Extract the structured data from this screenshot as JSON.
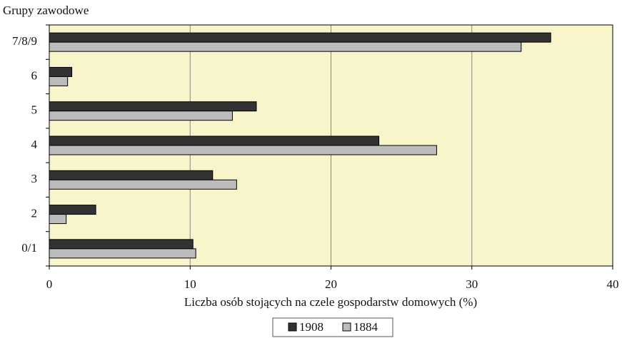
{
  "chart_data": {
    "type": "hbar",
    "title": "Grupy zawodowe",
    "xlabel": "Liczba osób stojących na czele gospodarstw domowych (%)",
    "categories": [
      "7/8/9",
      "6",
      "5",
      "4",
      "3",
      "2",
      "0/1"
    ],
    "series": [
      {
        "name": "1908",
        "color": "#333333",
        "values": [
          35.6,
          1.6,
          14.7,
          23.4,
          11.6,
          3.3,
          10.2
        ]
      },
      {
        "name": "1884",
        "color": "#bcbcbc",
        "values": [
          33.5,
          1.3,
          13.0,
          27.5,
          13.3,
          1.2,
          10.4
        ]
      }
    ],
    "xlim": [
      0,
      40
    ],
    "xticks": [
      0,
      10,
      20,
      30,
      40
    ],
    "grid": true,
    "legend": "bottom"
  }
}
